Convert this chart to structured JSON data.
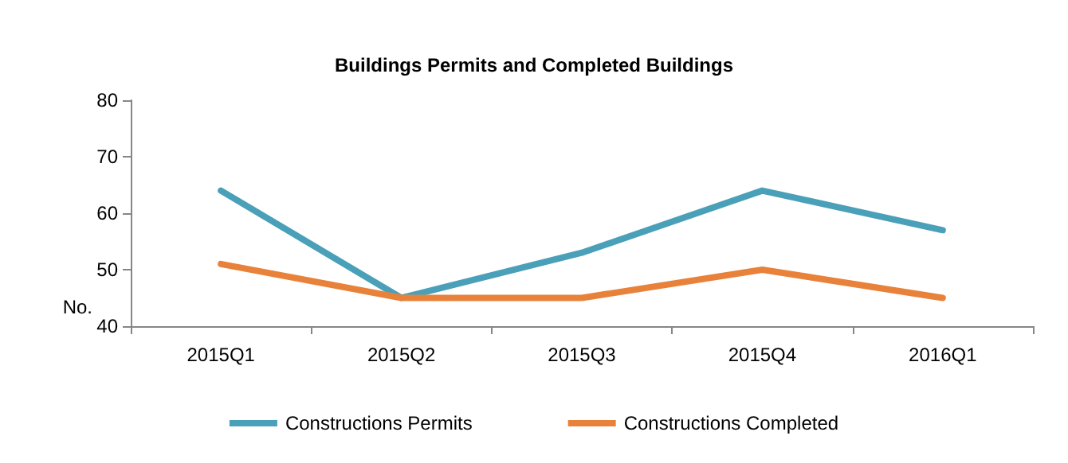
{
  "chart_data": {
    "type": "line",
    "title": "Buildings Permits and Completed Buildings",
    "ylabel": "No.",
    "categories": [
      "2015Q1",
      "2015Q2",
      "2015Q3",
      "2015Q4",
      "2016Q1"
    ],
    "series": [
      {
        "name": "Constructions Permits",
        "color": "#4aa0b8",
        "values": [
          64,
          45,
          53,
          64,
          57
        ]
      },
      {
        "name": "Constructions Completed",
        "color": "#e8823a",
        "values": [
          51,
          45,
          45,
          50,
          45
        ]
      }
    ],
    "ylim": [
      40,
      80
    ],
    "yticks": [
      40,
      50,
      60,
      70,
      80
    ],
    "grid": false,
    "legend": "bottom",
    "marker": "none",
    "line_style": "solid"
  }
}
